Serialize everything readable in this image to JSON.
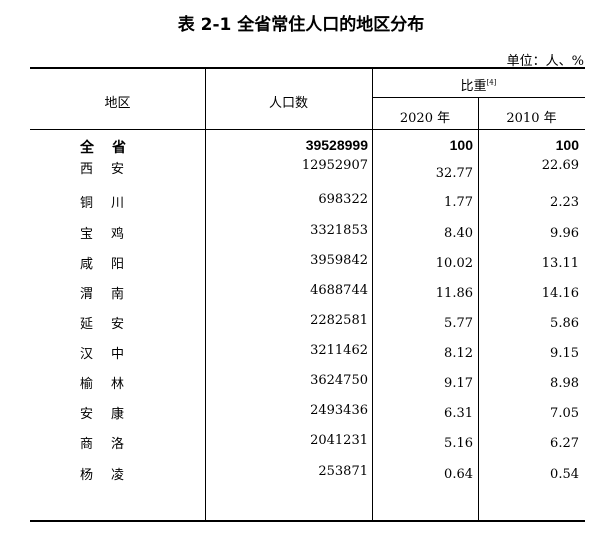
{
  "title": "表 2-1  全省常住人口的地区分布",
  "unit": "单位：人、%",
  "headers": {
    "region": "地区",
    "population": "人口数",
    "share": "比重",
    "share_note": "[4]",
    "year_2020": "2020 年",
    "year_2010": "2010 年"
  },
  "rows": [
    {
      "region": "全省",
      "population": "39528999",
      "share_2020": "100",
      "share_2010": "100"
    },
    {
      "region": "西安",
      "population": "12952907",
      "share_2020": "32.77",
      "share_2010": "22.69"
    },
    {
      "region": "铜川",
      "population": "698322",
      "share_2020": "1.77",
      "share_2010": "2.23"
    },
    {
      "region": "宝鸡",
      "population": "3321853",
      "share_2020": "8.40",
      "share_2010": "9.96"
    },
    {
      "region": "咸阳",
      "population": "3959842",
      "share_2020": "10.02",
      "share_2010": "13.11"
    },
    {
      "region": "渭南",
      "population": "4688744",
      "share_2020": "11.86",
      "share_2010": "14.16"
    },
    {
      "region": "延安",
      "population": "2282581",
      "share_2020": "5.77",
      "share_2010": "5.86"
    },
    {
      "region": "汉中",
      "population": "3211462",
      "share_2020": "8.12",
      "share_2010": "9.15"
    },
    {
      "region": "榆林",
      "population": "3624750",
      "share_2020": "9.17",
      "share_2010": "8.98"
    },
    {
      "region": "安康",
      "population": "2493436",
      "share_2020": "6.31",
      "share_2010": "7.05"
    },
    {
      "region": "商洛",
      "population": "2041231",
      "share_2020": "5.16",
      "share_2010": "6.27"
    },
    {
      "region": "杨凌",
      "population": "253871",
      "share_2020": "0.64",
      "share_2010": "0.54"
    }
  ]
}
